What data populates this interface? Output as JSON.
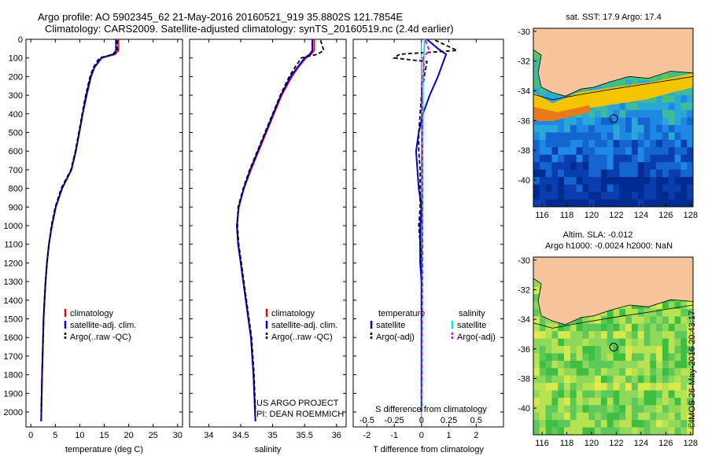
{
  "title": {
    "line1": "Argo profile: AO 5902345_62 21-May-2016 20160521_919 35.8802S 121.7854E",
    "line2": "Climatology: CARS2009. Satellite-adjusted climatology: synTS_20160519.nc (2.4d earlier)"
  },
  "watermark": "©IMOS 26-May-2016 20:43:17",
  "colors": {
    "climatology": "#ff0000",
    "satellite": "#0000dd",
    "argo": "#000000",
    "sal_sat": "#00e5e5",
    "sal_argo": "#dd00dd",
    "land": "#f8c49c"
  },
  "depth_axis": {
    "ylim": [
      2080,
      0
    ],
    "ticks": [
      0,
      100,
      200,
      300,
      400,
      500,
      600,
      700,
      800,
      900,
      1000,
      1100,
      1200,
      1300,
      1400,
      1500,
      1600,
      1700,
      1800,
      1900,
      2000
    ]
  },
  "chart_data": [
    {
      "type": "line",
      "id": "temperature",
      "xlabel": "temperature (deg C)",
      "xlim": [
        -1,
        31
      ],
      "xticks": [
        0,
        5,
        10,
        15,
        20,
        25,
        30
      ],
      "depth": [
        0,
        60,
        80,
        100,
        150,
        200,
        300,
        400,
        500,
        600,
        700,
        800,
        900,
        1000,
        1100,
        1200,
        1300,
        1400,
        1500,
        1600,
        1800,
        2050
      ],
      "series": [
        {
          "name": "climatology",
          "color": "#ff0000",
          "values": [
            17.9,
            17.9,
            17.2,
            14.5,
            13.0,
            12.2,
            11.3,
            10.6,
            9.9,
            9.2,
            8.3,
            6.4,
            5.1,
            4.3,
            3.7,
            3.3,
            3.0,
            2.8,
            2.6,
            2.5,
            2.3,
            2.1
          ]
        },
        {
          "name": "satellite-adj. clim.",
          "color": "#0000dd",
          "values": [
            17.4,
            17.4,
            16.8,
            14.4,
            13.0,
            12.3,
            11.4,
            10.6,
            9.9,
            9.2,
            8.3,
            6.4,
            5.1,
            4.3,
            3.7,
            3.3,
            3.0,
            2.8,
            2.6,
            2.5,
            2.3,
            2.1
          ]
        },
        {
          "name": "Argo(..raw -QC)",
          "color": "#000000",
          "dashed": true,
          "depth": [
            5,
            60,
            80,
            100,
            150,
            200,
            300,
            400,
            500,
            600,
            700,
            800,
            900,
            1000,
            1100,
            1200,
            1300,
            1400,
            1500,
            1600,
            1800,
            2000
          ],
          "values": [
            17.6,
            17.7,
            17.0,
            14.0,
            12.8,
            12.1,
            11.2,
            10.5,
            9.8,
            9.1,
            8.2,
            6.2,
            5.0,
            4.2,
            3.7,
            3.3,
            3.0,
            2.8,
            2.6,
            2.5,
            2.3,
            2.1
          ]
        }
      ],
      "legend": [
        "climatology",
        "satellite-adj. clim.",
        "Argo(..raw -QC)"
      ]
    },
    {
      "type": "line",
      "id": "salinity",
      "xlabel": "salinity",
      "xlim": [
        33.7,
        36.15
      ],
      "xticks": [
        34,
        34.5,
        35,
        35.5,
        36
      ],
      "depth": [
        0,
        60,
        80,
        100,
        150,
        200,
        300,
        400,
        500,
        600,
        700,
        800,
        900,
        1000,
        1100,
        1200,
        1300,
        1400,
        1500,
        1600,
        1800,
        2050
      ],
      "series": [
        {
          "name": "climatology",
          "color": "#ff0000",
          "values": [
            35.65,
            35.65,
            35.6,
            35.52,
            35.4,
            35.3,
            35.14,
            35.02,
            34.9,
            34.78,
            34.66,
            34.55,
            34.47,
            34.44,
            34.46,
            34.5,
            34.54,
            34.58,
            34.62,
            34.66,
            34.7,
            34.73
          ]
        },
        {
          "name": "satellite-adj. clim.",
          "color": "#0000dd",
          "values": [
            35.62,
            35.62,
            35.58,
            35.5,
            35.39,
            35.28,
            35.13,
            35.01,
            34.89,
            34.77,
            34.65,
            34.55,
            34.47,
            34.44,
            34.46,
            34.5,
            34.54,
            34.58,
            34.62,
            34.66,
            34.7,
            34.73
          ]
        },
        {
          "name": "Argo(..raw -QC)",
          "color": "#000000",
          "dashed": true,
          "depth": [
            5,
            60,
            80,
            100,
            150,
            200,
            300,
            400,
            500,
            600,
            700,
            800,
            900,
            1000,
            1100,
            1200,
            1300,
            1400,
            1500,
            1600,
            1800,
            2000
          ],
          "values": [
            35.75,
            35.8,
            35.7,
            35.45,
            35.35,
            35.26,
            35.12,
            35.0,
            34.88,
            34.76,
            34.64,
            34.54,
            34.46,
            34.45,
            34.47,
            34.51,
            34.55,
            34.59,
            34.63,
            34.67,
            34.71,
            34.73
          ]
        }
      ],
      "legend": [
        "climatology",
        "satellite-adj. clim.",
        "Argo(..raw -QC)"
      ],
      "annotation": [
        "US ARGO PROJECT",
        "PI: DEAN ROEMMICH"
      ]
    },
    {
      "type": "line",
      "id": "difference",
      "xlabel": "T difference from climatology",
      "xlim": [
        -2.5,
        3
      ],
      "xticks": [
        -2,
        -1,
        0,
        1,
        2
      ],
      "top_label": "S difference from climatology",
      "top_xlim": [
        -0.625,
        0.75
      ],
      "top_xticks": [
        -0.5,
        -0.25,
        0,
        0.25,
        0.5
      ],
      "series": [
        {
          "name": "T satellite",
          "color": "#0000dd",
          "depth": [
            0,
            50,
            80,
            120,
            200,
            300,
            400,
            500,
            600,
            700,
            800,
            900,
            1000,
            1100,
            1200,
            1300,
            1400,
            1500,
            1600,
            1800,
            2000
          ],
          "values": [
            0.2,
            0.6,
            0.9,
            0.8,
            0.6,
            0.3,
            0.05,
            -0.1,
            -0.2,
            -0.15,
            -0.1,
            0.0,
            -0.05,
            -0.05,
            -0.05,
            0.0,
            0.0,
            0.0,
            0.0,
            0.0,
            0.0
          ]
        },
        {
          "name": "T Argo(-adj)",
          "color": "#000000",
          "dashed": true,
          "depth": [
            5,
            60,
            80,
            100,
            120,
            200,
            300,
            400,
            500,
            600,
            700,
            800,
            900,
            1000,
            1100,
            1200,
            1300,
            1400,
            1500,
            1600,
            1800,
            2000
          ],
          "values": [
            0.5,
            1.3,
            -0.8,
            -1.0,
            0.2,
            0.1,
            0.0,
            -0.05,
            -0.1,
            -0.1,
            -0.05,
            -0.05,
            -0.05,
            -0.1,
            -0.05,
            0.0,
            0.0,
            0.0,
            0.0,
            0.0,
            0.0,
            0.0
          ]
        },
        {
          "name": "S satellite",
          "color": "#00e5e5",
          "depth": [
            0,
            50,
            100,
            200,
            400,
            600,
            800,
            1000,
            1200,
            1400,
            1600,
            1800,
            2000
          ],
          "values": [
            0.12,
            0.1,
            0.08,
            0.05,
            0.05,
            0.04,
            0.04,
            0.03,
            0.02,
            0.02,
            0.01,
            0.01,
            0.0
          ]
        },
        {
          "name": "S Argo(-adj)",
          "color": "#dd00dd",
          "dashed": true,
          "depth": [
            5,
            60,
            100,
            150,
            250,
            400,
            600,
            800,
            1000,
            1200,
            1400,
            1600,
            1800,
            2000
          ],
          "values": [
            0.15,
            0.28,
            0.05,
            0.1,
            0.0,
            0.03,
            0.03,
            0.04,
            0.04,
            0.04,
            0.03,
            0.02,
            0.01,
            0.0
          ]
        }
      ],
      "legend_temperature": {
        "title": "temperature",
        "items": [
          "satellite",
          "Argo(-adj)"
        ]
      },
      "legend_salinity": {
        "title": "salinity",
        "items": [
          "satellite",
          "Argo(-adj)"
        ]
      }
    },
    {
      "type": "heatmap",
      "id": "sst_map",
      "title": "sat. SST: 17.9 Argo: 17.4",
      "xlim": [
        115.3,
        128.2
      ],
      "ylim": [
        -41.8,
        -29.8
      ],
      "xticks": [
        116,
        118,
        120,
        122,
        124,
        126,
        128
      ],
      "yticks": [
        -30,
        -32,
        -34,
        -36,
        -38,
        -40
      ],
      "marker": {
        "lon": 121.79,
        "lat": -35.88
      }
    },
    {
      "type": "heatmap",
      "id": "sla_map",
      "title": "Altim. SLA: -0.012",
      "subtitle": "Argo h1000: -0.0024 h2000: NaN",
      "xlim": [
        115.3,
        128.2
      ],
      "ylim": [
        -41.8,
        -29.8
      ],
      "xticks": [
        116,
        118,
        120,
        122,
        124,
        126,
        128
      ],
      "yticks": [
        -30,
        -32,
        -34,
        -36,
        -38,
        -40
      ],
      "marker": {
        "lon": 121.79,
        "lat": -35.88
      }
    }
  ]
}
